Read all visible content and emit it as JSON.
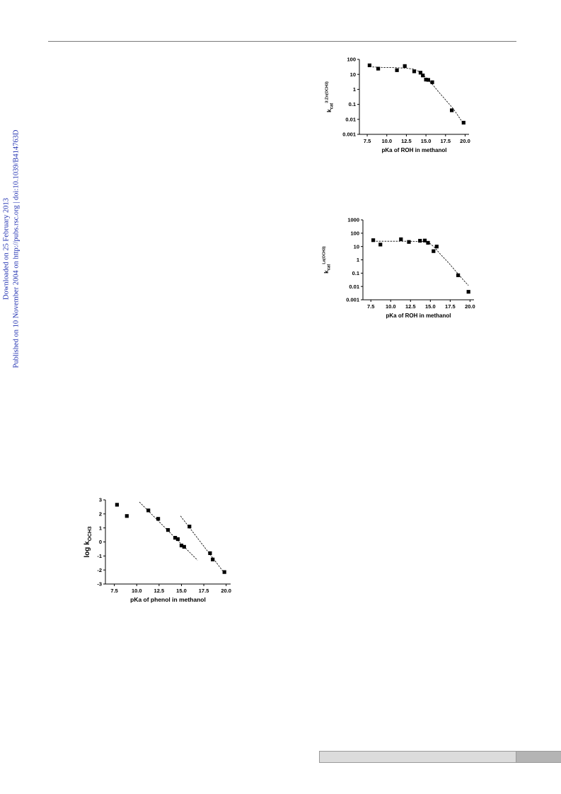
{
  "margin_note": {
    "line1": "Downloaded on 25 February 2013",
    "line2": "Published on 10 November 2004 on http://pubs.rsc.org | doi:10.1039/B414763D"
  },
  "chart_data": [
    {
      "type": "scatter",
      "xlabel": "pKa of ROH in methanol",
      "ylabel_main": "k",
      "ylabel_sub": "cat",
      "ylabel_sup": "3:Zn(OCH3)",
      "log_y": true,
      "xlim": [
        6.5,
        20.5
      ],
      "ylim": [
        0.001,
        100
      ],
      "x_ticks": [
        7.5,
        10.0,
        12.5,
        15.0,
        17.5,
        20.0
      ],
      "x_tick_labels": [
        "7.5",
        "10.0",
        "12.5",
        "15.0",
        "17.5",
        "20.0"
      ],
      "y_ticks": [
        0.001,
        0.01,
        0.1,
        1,
        10,
        100
      ],
      "y_tick_labels": [
        "0.001",
        "0.01",
        "0.1",
        "1",
        "10",
        "100"
      ],
      "points": [
        [
          7.8,
          40
        ],
        [
          8.9,
          24
        ],
        [
          11.3,
          19
        ],
        [
          12.3,
          36
        ],
        [
          13.5,
          16
        ],
        [
          14.3,
          13
        ],
        [
          14.6,
          8.5
        ],
        [
          15.0,
          4.5
        ],
        [
          15.3,
          4.3
        ],
        [
          15.8,
          3.0
        ],
        [
          18.3,
          0.04
        ],
        [
          19.8,
          0.006
        ]
      ],
      "fit_line": [
        [
          7.8,
          32
        ],
        [
          9.5,
          29
        ],
        [
          11.0,
          28
        ],
        [
          12.5,
          26
        ],
        [
          13.5,
          22
        ],
        [
          14.3,
          14
        ],
        [
          15.0,
          6
        ],
        [
          15.8,
          2.2
        ],
        [
          16.6,
          0.7
        ],
        [
          17.5,
          0.2
        ],
        [
          18.5,
          0.05
        ],
        [
          19.8,
          0.005
        ]
      ]
    },
    {
      "type": "scatter",
      "xlabel": "pKa of ROH in methanol",
      "ylabel_main": "k",
      "ylabel_sub": "cat",
      "ylabel_sup": "La(OCH3)",
      "log_y": true,
      "xlim": [
        6.5,
        20.5
      ],
      "ylim": [
        0.001,
        1000
      ],
      "x_ticks": [
        7.5,
        10.0,
        12.5,
        15.0,
        17.5,
        20.0
      ],
      "x_tick_labels": [
        "7.5",
        "10.0",
        "12.5",
        "15.0",
        "17.5",
        "20.0"
      ],
      "y_ticks": [
        0.001,
        0.01,
        0.1,
        1,
        10,
        100,
        1000
      ],
      "y_tick_labels": [
        "0.001",
        "0.01",
        "0.1",
        "1",
        "10",
        "100",
        "1000"
      ],
      "points": [
        [
          7.8,
          30
        ],
        [
          8.7,
          14
        ],
        [
          11.3,
          35
        ],
        [
          12.3,
          22
        ],
        [
          13.7,
          27
        ],
        [
          14.3,
          28
        ],
        [
          14.7,
          19
        ],
        [
          15.4,
          4.5
        ],
        [
          15.8,
          10
        ],
        [
          18.5,
          0.07
        ],
        [
          19.8,
          0.004
        ]
      ],
      "fit_line": [
        [
          7.8,
          25
        ],
        [
          10.0,
          25
        ],
        [
          12.0,
          25
        ],
        [
          14.0,
          24
        ],
        [
          14.8,
          20
        ],
        [
          15.5,
          9
        ],
        [
          16.3,
          2.5
        ],
        [
          17.3,
          0.6
        ],
        [
          18.3,
          0.12
        ],
        [
          19.3,
          0.025
        ],
        [
          19.8,
          0.012
        ]
      ]
    },
    {
      "type": "scatter",
      "xlabel": "pKa of phenol in methanol",
      "ylabel_main": "log k",
      "ylabel_sub": "OCH3",
      "log_y": false,
      "xlim": [
        6.5,
        20.5
      ],
      "ylim": [
        -3,
        3
      ],
      "x_ticks": [
        7.5,
        10.0,
        12.5,
        15.0,
        17.5,
        20.0
      ],
      "x_tick_labels": [
        "7.5",
        "10.0",
        "12.5",
        "15.0",
        "17.5",
        "20.0"
      ],
      "y_ticks": [
        -3,
        -2,
        -1,
        0,
        1,
        2,
        3
      ],
      "y_tick_labels": [
        "-3",
        "-2",
        "-1",
        "0",
        "1",
        "2",
        "3"
      ],
      "points": [
        [
          7.8,
          2.65
        ],
        [
          8.9,
          1.85
        ],
        [
          11.3,
          2.25
        ],
        [
          12.4,
          1.65
        ],
        [
          13.5,
          0.85
        ],
        [
          14.3,
          0.3
        ],
        [
          14.6,
          0.2
        ],
        [
          15.0,
          -0.25
        ],
        [
          15.3,
          -0.35
        ],
        [
          15.9,
          1.1
        ],
        [
          18.2,
          -0.8
        ],
        [
          18.5,
          -1.25
        ],
        [
          19.8,
          -2.15
        ]
      ],
      "fit_lines": [
        [
          [
            10.3,
            2.85
          ],
          [
            16.8,
            -1.3
          ]
        ],
        [
          [
            14.9,
            1.85
          ],
          [
            19.9,
            -2.3
          ]
        ]
      ]
    }
  ]
}
